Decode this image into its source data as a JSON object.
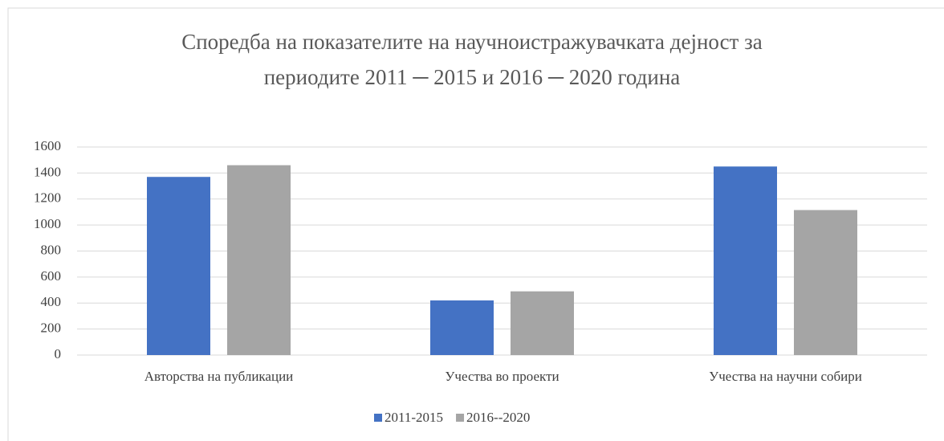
{
  "chart_data": {
    "type": "bar",
    "title": [
      "Споредба на показателите на научноистражувачката дејност за",
      "периодите 2011 ─ 2015 и 2016 ─ 2020 година"
    ],
    "categories": [
      "Авторства на публикации",
      "Учества во проекти",
      "Учества на научни собири"
    ],
    "series": [
      {
        "name": "2011-2015",
        "color": "#4472c4",
        "values": [
          1370,
          420,
          1450
        ]
      },
      {
        "name": "2016--2020",
        "color": "#a5a5a5",
        "values": [
          1460,
          490,
          1115
        ]
      }
    ],
    "ylim": [
      0,
      1600
    ],
    "yticks": [
      0,
      200,
      400,
      600,
      800,
      1000,
      1200,
      1400,
      1600
    ],
    "grid": true,
    "legend": "bottom"
  }
}
